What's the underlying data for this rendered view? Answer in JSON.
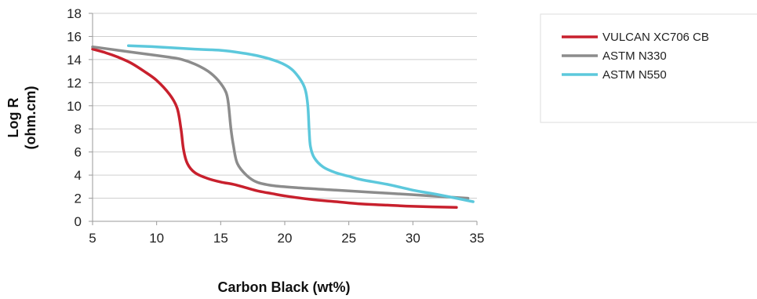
{
  "chart_data": {
    "type": "line",
    "xlabel": "Carbon Black (wt%)",
    "ylabel_lines": [
      "Log R",
      "(ohm.cm)"
    ],
    "xlim": [
      5,
      35
    ],
    "ylim": [
      0,
      18
    ],
    "x_ticks": [
      5,
      10,
      15,
      20,
      25,
      30,
      35
    ],
    "y_ticks": [
      0,
      2,
      4,
      6,
      8,
      10,
      12,
      14,
      16,
      18
    ],
    "grid": "horizontal",
    "legend_position": "right",
    "series": [
      {
        "name": "VULCAN XC706 CB",
        "color": "#c8202d",
        "points": [
          [
            5,
            14.9
          ],
          [
            6,
            14.6
          ],
          [
            7,
            14.2
          ],
          [
            8,
            13.7
          ],
          [
            9,
            13.0
          ],
          [
            10,
            12.2
          ],
          [
            11,
            11.0
          ],
          [
            11.6,
            9.8
          ],
          [
            11.9,
            8.0
          ],
          [
            12.1,
            6.2
          ],
          [
            12.4,
            5.0
          ],
          [
            13,
            4.2
          ],
          [
            14,
            3.7
          ],
          [
            15,
            3.4
          ],
          [
            16,
            3.2
          ],
          [
            17,
            2.9
          ],
          [
            18,
            2.6
          ],
          [
            19,
            2.4
          ],
          [
            20,
            2.2
          ],
          [
            22,
            1.9
          ],
          [
            24,
            1.7
          ],
          [
            26,
            1.5
          ],
          [
            28,
            1.4
          ],
          [
            30,
            1.3
          ],
          [
            33.4,
            1.2
          ]
        ]
      },
      {
        "name": "ASTM N330",
        "color": "#8c8c8c",
        "points": [
          [
            5,
            15.1
          ],
          [
            7,
            14.8
          ],
          [
            9,
            14.5
          ],
          [
            11,
            14.2
          ],
          [
            12,
            14.0
          ],
          [
            13,
            13.6
          ],
          [
            14,
            13.0
          ],
          [
            14.8,
            12.2
          ],
          [
            15.4,
            11.2
          ],
          [
            15.6,
            10.2
          ],
          [
            15.8,
            8.0
          ],
          [
            16,
            6.5
          ],
          [
            16.3,
            5.0
          ],
          [
            17,
            4.0
          ],
          [
            17.8,
            3.4
          ],
          [
            19,
            3.1
          ],
          [
            21,
            2.9
          ],
          [
            24,
            2.7
          ],
          [
            27,
            2.5
          ],
          [
            30,
            2.3
          ],
          [
            34.3,
            2.0
          ]
        ]
      },
      {
        "name": "ASTM N550",
        "color": "#5cc8dc",
        "points": [
          [
            7.8,
            15.2
          ],
          [
            10,
            15.1
          ],
          [
            13,
            14.9
          ],
          [
            15,
            14.8
          ],
          [
            16.5,
            14.6
          ],
          [
            18,
            14.3
          ],
          [
            19.5,
            13.8
          ],
          [
            20.5,
            13.2
          ],
          [
            21.2,
            12.3
          ],
          [
            21.6,
            11.4
          ],
          [
            21.8,
            10.0
          ],
          [
            21.9,
            8.0
          ],
          [
            22,
            6.5
          ],
          [
            22.3,
            5.5
          ],
          [
            23,
            4.7
          ],
          [
            24,
            4.2
          ],
          [
            25,
            3.9
          ],
          [
            26,
            3.6
          ],
          [
            28,
            3.2
          ],
          [
            30,
            2.7
          ],
          [
            32,
            2.3
          ],
          [
            34.7,
            1.7
          ]
        ]
      }
    ]
  }
}
